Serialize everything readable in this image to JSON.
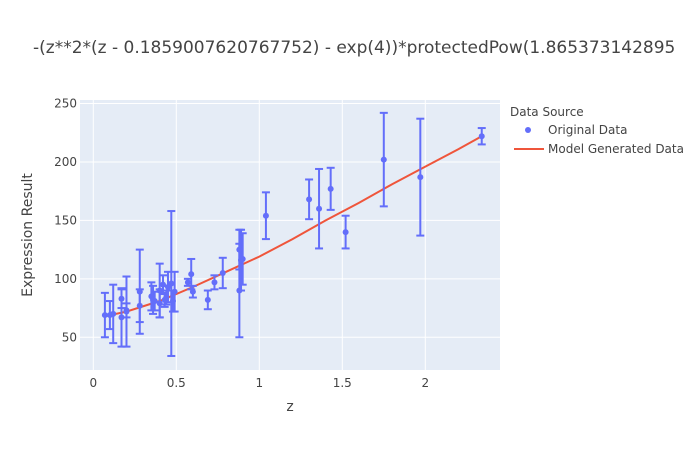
{
  "chart_data": {
    "type": "scatter",
    "title": "-(z**2*(z - 0.1859007620767752) - exp(4))*protectedPow(1.865373142895",
    "xlabel": "z",
    "ylabel": "Expression Result",
    "xlim": [
      -0.08,
      2.45
    ],
    "ylim": [
      22,
      253
    ],
    "x_ticks": [
      0,
      0.5,
      1,
      1.5,
      2
    ],
    "x_tick_labels": [
      "0",
      "0.5",
      "1",
      "1.5",
      "2"
    ],
    "y_ticks": [
      50,
      100,
      150,
      200,
      250
    ],
    "y_tick_labels": [
      "50",
      "100",
      "150",
      "200",
      "250"
    ],
    "grid": true,
    "legend": {
      "title": "Data Source",
      "placement": "right",
      "entries": [
        "Original Data",
        "Model Generated Data"
      ]
    },
    "colors": {
      "original": "#636efa",
      "model": "#ef553b",
      "plot_bg": "#e5ecf6",
      "grid": "#ffffff"
    },
    "series": [
      {
        "name": "Original Data",
        "mode": "markers+error_bars",
        "points": [
          {
            "x": 0.07,
            "y": 69,
            "err": 19
          },
          {
            "x": 0.1,
            "y": 69,
            "err": 12
          },
          {
            "x": 0.12,
            "y": 70,
            "err": 25
          },
          {
            "x": 0.17,
            "y": 83,
            "err": 8
          },
          {
            "x": 0.17,
            "y": 67,
            "err": 25
          },
          {
            "x": 0.2,
            "y": 72,
            "err": 30
          },
          {
            "x": 0.2,
            "y": 73,
            "err": 6
          },
          {
            "x": 0.28,
            "y": 89,
            "err": 36
          },
          {
            "x": 0.28,
            "y": 77,
            "err": 14
          },
          {
            "x": 0.35,
            "y": 85,
            "err": 12
          },
          {
            "x": 0.36,
            "y": 82,
            "err": 12
          },
          {
            "x": 0.37,
            "y": 81,
            "err": 8
          },
          {
            "x": 0.4,
            "y": 90,
            "err": 23
          },
          {
            "x": 0.4,
            "y": 79,
            "err": 12
          },
          {
            "x": 0.42,
            "y": 95,
            "err": 8
          },
          {
            "x": 0.43,
            "y": 82,
            "err": 6
          },
          {
            "x": 0.44,
            "y": 84,
            "err": 6
          },
          {
            "x": 0.45,
            "y": 93,
            "err": 13
          },
          {
            "x": 0.47,
            "y": 96,
            "err": 62
          },
          {
            "x": 0.48,
            "y": 81,
            "err": 9
          },
          {
            "x": 0.49,
            "y": 89,
            "err": 17
          },
          {
            "x": 0.57,
            "y": 97,
            "err": 3
          },
          {
            "x": 0.59,
            "y": 104,
            "err": 13
          },
          {
            "x": 0.6,
            "y": 89,
            "err": 5
          },
          {
            "x": 0.69,
            "y": 82,
            "err": 8
          },
          {
            "x": 0.73,
            "y": 97,
            "err": 6
          },
          {
            "x": 0.78,
            "y": 105,
            "err": 13
          },
          {
            "x": 0.88,
            "y": 125,
            "err": 17
          },
          {
            "x": 0.88,
            "y": 90,
            "err": 40
          },
          {
            "x": 0.89,
            "y": 116,
            "err": 26
          },
          {
            "x": 0.9,
            "y": 117,
            "err": 22
          },
          {
            "x": 1.04,
            "y": 154,
            "err": 20
          },
          {
            "x": 1.3,
            "y": 168,
            "err": 17
          },
          {
            "x": 1.36,
            "y": 160,
            "err": 34
          },
          {
            "x": 1.43,
            "y": 177,
            "err": 18
          },
          {
            "x": 1.52,
            "y": 140,
            "err": 14
          },
          {
            "x": 1.75,
            "y": 202,
            "err": 40
          },
          {
            "x": 1.97,
            "y": 187,
            "err": 50
          },
          {
            "x": 2.34,
            "y": 222,
            "err": 7
          }
        ]
      },
      {
        "name": "Model Generated Data",
        "mode": "lines",
        "points": [
          {
            "x": 0.07,
            "y": 68
          },
          {
            "x": 0.2,
            "y": 72
          },
          {
            "x": 0.4,
            "y": 81
          },
          {
            "x": 0.6,
            "y": 93
          },
          {
            "x": 0.8,
            "y": 106
          },
          {
            "x": 1.0,
            "y": 119
          },
          {
            "x": 1.2,
            "y": 134
          },
          {
            "x": 1.4,
            "y": 150
          },
          {
            "x": 1.6,
            "y": 165
          },
          {
            "x": 1.8,
            "y": 181
          },
          {
            "x": 2.0,
            "y": 196
          },
          {
            "x": 2.2,
            "y": 211
          },
          {
            "x": 2.34,
            "y": 222
          }
        ]
      }
    ]
  }
}
